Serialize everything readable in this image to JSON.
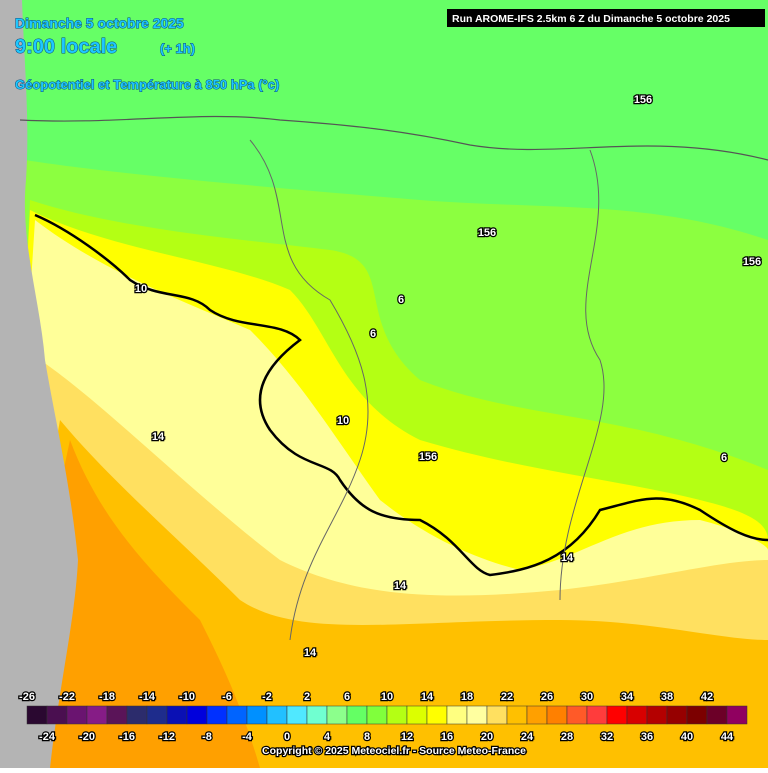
{
  "header": {
    "date": "Dimanche 5 octobre 2025",
    "time": "9:00 locale",
    "offset": "(+ 1h)",
    "parameter": "Géopotentiel et Température à 850 hPa (°c)",
    "run": "Run AROME-IFS 2.5km 6 Z du Dimanche 5 octobre 2025"
  },
  "map": {
    "contour_labels": [
      156,
      156,
      156,
      156,
      10,
      6,
      6,
      10,
      14,
      14,
      14,
      14,
      6
    ]
  },
  "legend": {
    "ticks": [
      -26,
      -24,
      -22,
      -20,
      -18,
      -16,
      -14,
      -12,
      -10,
      -8,
      -6,
      -4,
      -2,
      0,
      2,
      4,
      6,
      8,
      10,
      12,
      14,
      16,
      18,
      20,
      22,
      24,
      26,
      28,
      30,
      32,
      34,
      36,
      38,
      40,
      42,
      44
    ],
    "colors": [
      "#2a0830",
      "#4a0f50",
      "#6a1470",
      "#861c86",
      "#5a1458",
      "#2c2c6c",
      "#1e2c8c",
      "#0a10b4",
      "#0000dc",
      "#0030ff",
      "#0064ff",
      "#0090ff",
      "#22c0ff",
      "#50e8ff",
      "#70ffd0",
      "#8cff8c",
      "#64ff64",
      "#80ff3c",
      "#b4ff14",
      "#dcff00",
      "#ffff00",
      "#ffff80",
      "#ffffa0",
      "#ffe060",
      "#ffc000",
      "#ffa000",
      "#ff8000",
      "#ff5a28",
      "#ff3c3c",
      "#ff0000",
      "#d80000",
      "#b40000",
      "#960000",
      "#7c0000",
      "#6c0028",
      "#900060"
    ]
  },
  "footer": "Copyright © 2025 Meteociel.fr - Source Meteo-France"
}
